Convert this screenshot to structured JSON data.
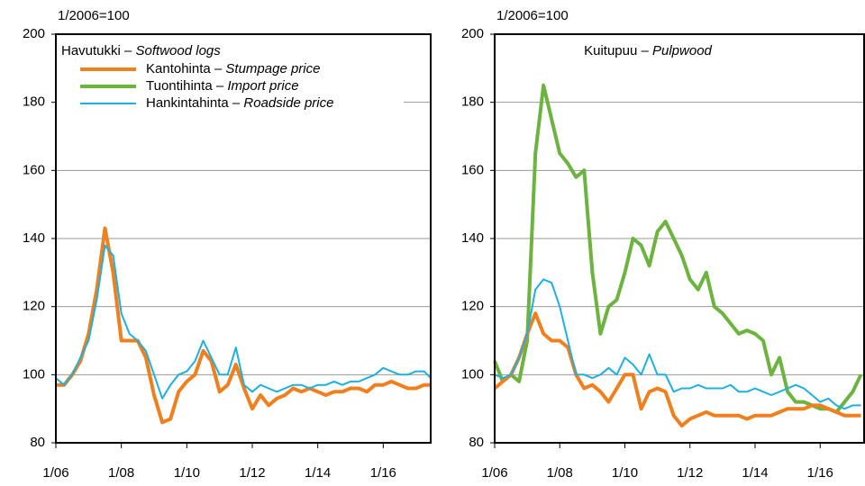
{
  "chart_data": [
    {
      "type": "line",
      "title": "Havutukki – Softwood logs",
      "y_label": "1/2006=100",
      "legend": "upper left",
      "grid": true,
      "xlim": [
        2006,
        2017.45
      ],
      "ylim": [
        80,
        200
      ],
      "xticks": [
        {
          "value": 2006,
          "label": "1/06"
        },
        {
          "value": 2008,
          "label": "1/08"
        },
        {
          "value": 2010,
          "label": "1/10"
        },
        {
          "value": 2012,
          "label": "1/12"
        },
        {
          "value": 2014,
          "label": "1/14"
        },
        {
          "value": 2016,
          "label": "1/16"
        }
      ],
      "yticks": [
        80,
        100,
        120,
        140,
        160,
        180,
        200
      ],
      "x": [
        2006,
        2006.25,
        2006.5,
        2006.75,
        2007,
        2007.25,
        2007.5,
        2007.75,
        2008,
        2008.25,
        2008.5,
        2008.75,
        2009,
        2009.25,
        2009.5,
        2009.75,
        2010,
        2010.25,
        2010.5,
        2010.75,
        2011,
        2011.25,
        2011.5,
        2011.75,
        2012,
        2012.25,
        2012.5,
        2012.75,
        2013,
        2013.25,
        2013.5,
        2013.75,
        2014,
        2014.25,
        2014.5,
        2014.75,
        2015,
        2015.25,
        2015.5,
        2015.75,
        2016,
        2016.25,
        2016.5,
        2016.75,
        2017,
        2017.25,
        2017.45
      ],
      "series": [
        {
          "name": "Kantohinta – Stumpage price",
          "color": "#f07f1e",
          "line_width": 4,
          "values": [
            97,
            97,
            100,
            104,
            112,
            125,
            143,
            130,
            110,
            110,
            110,
            105,
            94,
            86,
            87,
            95,
            98,
            100,
            107,
            104,
            95,
            97,
            103,
            96,
            90,
            94,
            91,
            93,
            94,
            96,
            95,
            96,
            95,
            94,
            95,
            95,
            96,
            96,
            95,
            97,
            97,
            98,
            97,
            96,
            96,
            97,
            97
          ]
        },
        {
          "name": "Tuontihinta  – Import price",
          "color": "#6cb33f",
          "line_width": 4,
          "values": [
            null,
            null,
            null,
            null,
            null,
            null,
            null,
            null,
            null,
            null,
            null,
            null,
            null,
            null,
            null,
            null,
            null,
            null,
            null,
            null,
            null,
            null,
            null,
            null,
            null,
            null,
            null,
            null,
            null,
            null,
            null,
            null,
            null,
            null,
            null,
            null,
            null,
            null,
            null,
            null,
            null,
            null,
            null,
            null,
            null,
            null,
            null
          ]
        },
        {
          "name": "Hankintahinta – Roadside price",
          "color": "#1fb0e0",
          "line_width": 2,
          "values": [
            99,
            97,
            100,
            105,
            110,
            122,
            138,
            135,
            118,
            112,
            110,
            107,
            100,
            93,
            97,
            100,
            101,
            104,
            110,
            105,
            100,
            100,
            108,
            97,
            95,
            97,
            96,
            95,
            96,
            97,
            97,
            96,
            97,
            97,
            98,
            97,
            98,
            98,
            99,
            100,
            102,
            101,
            100,
            100,
            101,
            101,
            99
          ]
        }
      ]
    },
    {
      "type": "line",
      "title": "Kuitupuu – Pulpwood",
      "y_label": "1/2006=100",
      "grid": true,
      "xlim": [
        2006,
        2017.35
      ],
      "ylim": [
        80,
        200
      ],
      "xticks": [
        {
          "value": 2006,
          "label": "1/06"
        },
        {
          "value": 2008,
          "label": "1/08"
        },
        {
          "value": 2010,
          "label": "1/10"
        },
        {
          "value": 2012,
          "label": "1/12"
        },
        {
          "value": 2014,
          "label": "1/14"
        },
        {
          "value": 2016,
          "label": "1/16"
        }
      ],
      "yticks": [
        80,
        100,
        120,
        140,
        160,
        180,
        200
      ],
      "x": [
        2006,
        2006.25,
        2006.5,
        2006.75,
        2007,
        2007.25,
        2007.5,
        2007.75,
        2008,
        2008.25,
        2008.5,
        2008.75,
        2009,
        2009.25,
        2009.5,
        2009.75,
        2010,
        2010.25,
        2010.5,
        2010.75,
        2011,
        2011.25,
        2011.5,
        2011.75,
        2012,
        2012.25,
        2012.5,
        2012.75,
        2013,
        2013.25,
        2013.5,
        2013.75,
        2014,
        2014.25,
        2014.5,
        2014.75,
        2015,
        2015.25,
        2015.5,
        2015.75,
        2016,
        2016.25,
        2016.5,
        2016.75,
        2017,
        2017.25
      ],
      "series": [
        {
          "name": "Tuontihinta  – Import price",
          "color": "#6cb33f",
          "line_width": 4,
          "values": [
            104,
            98,
            100,
            98,
            110,
            165,
            185,
            175,
            165,
            162,
            158,
            160,
            130,
            112,
            120,
            122,
            130,
            140,
            138,
            132,
            142,
            145,
            140,
            135,
            128,
            125,
            130,
            120,
            118,
            115,
            112,
            113,
            112,
            110,
            100,
            105,
            95,
            92,
            92,
            91,
            90,
            90,
            89,
            92,
            95,
            100
          ]
        },
        {
          "name": "Kantohinta – Stumpage price",
          "color": "#f07f1e",
          "line_width": 4,
          "values": [
            96,
            98,
            100,
            105,
            112,
            118,
            112,
            110,
            110,
            108,
            100,
            96,
            97,
            95,
            92,
            96,
            100,
            100,
            90,
            95,
            96,
            95,
            88,
            85,
            87,
            88,
            89,
            88,
            88,
            88,
            88,
            87,
            88,
            88,
            88,
            89,
            90,
            90,
            90,
            91,
            91,
            90,
            89,
            88,
            88,
            88
          ]
        },
        {
          "name": "Hankintahinta – Roadside price",
          "color": "#1fb0e0",
          "line_width": 2,
          "values": [
            100,
            99,
            100,
            105,
            112,
            125,
            128,
            127,
            120,
            110,
            100,
            100,
            99,
            100,
            102,
            100,
            105,
            103,
            100,
            106,
            100,
            100,
            95,
            96,
            96,
            97,
            96,
            96,
            96,
            97,
            95,
            95,
            96,
            95,
            94,
            95,
            96,
            97,
            96,
            94,
            92,
            93,
            91,
            90,
            91,
            91
          ]
        }
      ]
    }
  ]
}
